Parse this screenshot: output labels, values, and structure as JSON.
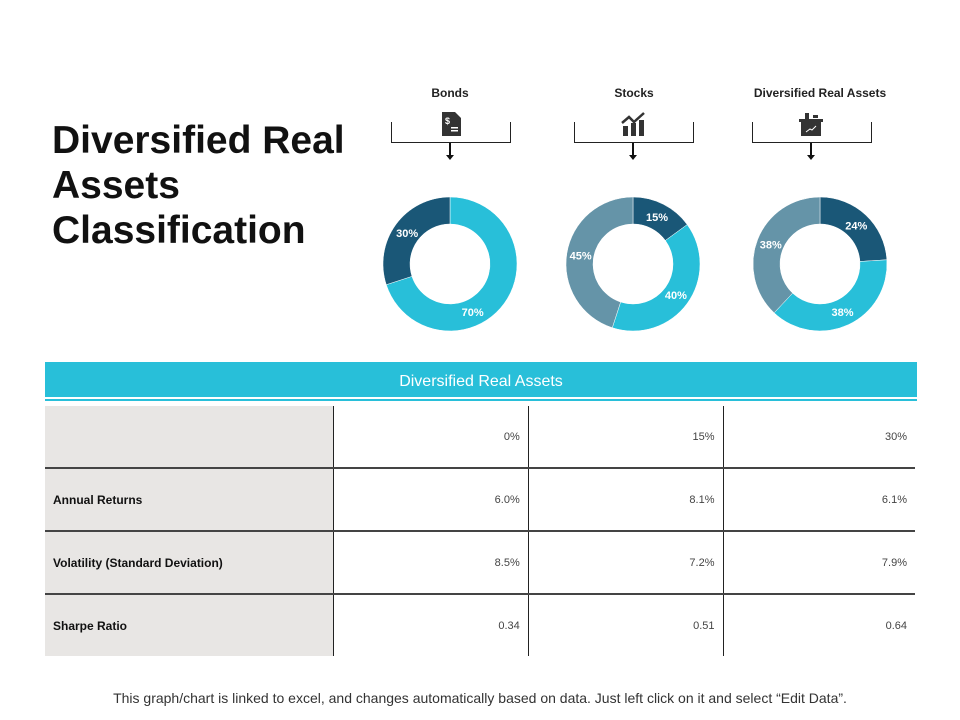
{
  "title": "Diversified Real Assets Classification",
  "colors": {
    "dark": "#1a5777",
    "light": "#28bfd9",
    "grey": "#6594a8"
  },
  "categories": [
    {
      "label": "Bonds",
      "icon": "dollar-document-icon"
    },
    {
      "label": "Stocks",
      "icon": "growth-chart-icon"
    },
    {
      "label": "Diversified Real Assets",
      "icon": "real-assets-icon"
    }
  ],
  "chart_data": [
    {
      "type": "pie",
      "title": "Bonds",
      "slices": [
        {
          "value": 70,
          "label": "70%",
          "color": "#28bfd9"
        },
        {
          "value": 30,
          "label": "30%",
          "color": "#1a5777"
        }
      ]
    },
    {
      "type": "pie",
      "title": "Stocks",
      "slices": [
        {
          "value": 15,
          "label": "15%",
          "color": "#1a5777"
        },
        {
          "value": 40,
          "label": "40%",
          "color": "#28bfd9"
        },
        {
          "value": 45,
          "label": "45%",
          "color": "#6594a8"
        }
      ]
    },
    {
      "type": "pie",
      "title": "Diversified Real Assets",
      "slices": [
        {
          "value": 24,
          "label": "24%",
          "color": "#1a5777"
        },
        {
          "value": 38,
          "label": "38%",
          "color": "#28bfd9"
        },
        {
          "value": 38,
          "label": "38%",
          "color": "#6594a8"
        }
      ]
    }
  ],
  "table": {
    "title": "Diversified Real Assets",
    "rows": [
      {
        "label": "",
        "cells": [
          "0%",
          "15%",
          "30%"
        ]
      },
      {
        "label": "Annual Returns",
        "cells": [
          "6.0%",
          "8.1%",
          "6.1%"
        ]
      },
      {
        "label": "Volatility (Standard Deviation)",
        "cells": [
          "8.5%",
          "7.2%",
          "7.9%"
        ]
      },
      {
        "label": "Sharpe Ratio",
        "cells": [
          "0.34",
          "0.51",
          "0.64"
        ]
      }
    ]
  },
  "footer": "This graph/chart is linked to excel, and changes automatically based on data. Just left click on it and select “Edit Data”."
}
